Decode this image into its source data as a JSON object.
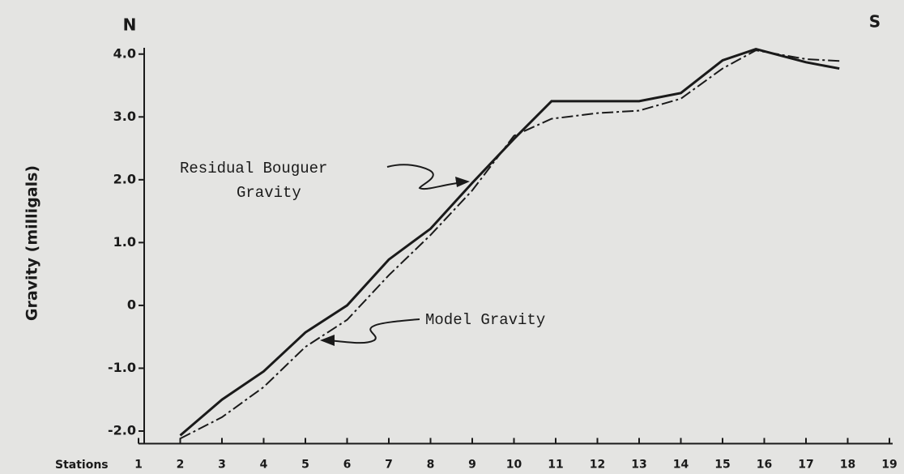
{
  "chart_data": {
    "type": "line",
    "corner_left": "N",
    "corner_right": "S",
    "y_label": "Gravity (milligals)",
    "x_label": "Stations",
    "annotations": [
      {
        "text": [
          "Residual Bouguer",
          "Gravity"
        ]
      },
      {
        "text": [
          "Model Gravity"
        ]
      }
    ],
    "x": [
      2,
      3,
      4,
      5,
      6,
      7,
      8,
      9,
      10,
      10.9,
      12,
      13,
      14,
      15,
      15.8,
      17,
      17.8
    ],
    "series": [
      {
        "color": "#1a1a1a",
        "style": "solid",
        "values": [
          -2.07,
          -1.5,
          -1.05,
          -0.43,
          0,
          0.73,
          1.22,
          1.95,
          2.65,
          3.25,
          3.25,
          3.25,
          3.38,
          3.9,
          4.08,
          3.87,
          3.77
        ]
      },
      {
        "color": "#1a1a1a",
        "style": "dashdot",
        "values": [
          -2.12,
          -1.78,
          -1.3,
          -0.66,
          -0.23,
          0.48,
          1.12,
          1.83,
          2.7,
          2.97,
          3.06,
          3.1,
          3.29,
          3.77,
          4.06,
          3.92,
          3.89
        ]
      }
    ],
    "xlim": [
      1,
      19
    ],
    "xticks": [
      1,
      2,
      3,
      4,
      5,
      6,
      7,
      8,
      9,
      10,
      11,
      12,
      13,
      14,
      15,
      16,
      17,
      18,
      19
    ],
    "ylim": [
      -2.2,
      4.1
    ],
    "yticks": [
      {
        "value": 4,
        "label": "4.0"
      },
      {
        "value": 3,
        "label": "3.0"
      },
      {
        "value": 2,
        "label": "2.0"
      },
      {
        "value": 1,
        "label": "1.0"
      },
      0,
      {
        "value": -1,
        "label": "-1.0"
      },
      {
        "value": -2,
        "label": "-2.0"
      }
    ],
    "grid": false
  }
}
